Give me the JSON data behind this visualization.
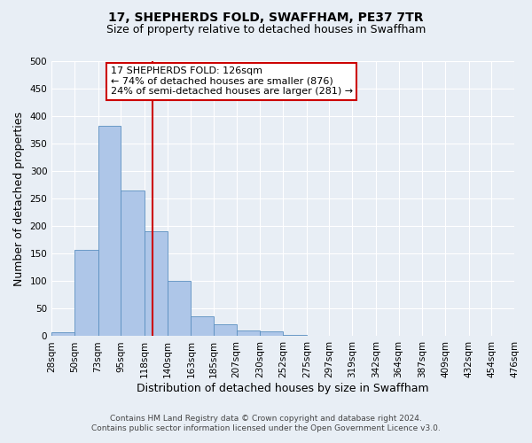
{
  "title": "17, SHEPHERDS FOLD, SWAFFHAM, PE37 7TR",
  "subtitle": "Size of property relative to detached houses in Swaffham",
  "xlabel": "Distribution of detached houses by size in Swaffham",
  "ylabel": "Number of detached properties",
  "bin_edges": [
    28,
    50,
    73,
    95,
    118,
    140,
    163,
    185,
    207,
    230,
    252,
    275,
    297,
    319,
    342,
    364,
    387,
    409,
    432,
    454,
    476
  ],
  "bar_heights": [
    7,
    157,
    383,
    265,
    190,
    101,
    36,
    21,
    11,
    8,
    2,
    1,
    1,
    0,
    0,
    1,
    0,
    0,
    0,
    0
  ],
  "bar_color": "#aec6e8",
  "bar_edgecolor": "#5a8fc0",
  "reference_line_x": 126,
  "reference_line_color": "#cc0000",
  "annotation_title": "17 SHEPHERDS FOLD: 126sqm",
  "annotation_line1": "← 74% of detached houses are smaller (876)",
  "annotation_line2": "24% of semi-detached houses are larger (281) →",
  "annotation_box_edgecolor": "#cc0000",
  "annotation_box_facecolor": "#ffffff",
  "ylim": [
    0,
    500
  ],
  "yticks": [
    0,
    50,
    100,
    150,
    200,
    250,
    300,
    350,
    400,
    450,
    500
  ],
  "footer_line1": "Contains HM Land Registry data © Crown copyright and database right 2024.",
  "footer_line2": "Contains public sector information licensed under the Open Government Licence v3.0.",
  "background_color": "#e8eef5",
  "plot_background_color": "#e8eef5",
  "title_fontsize": 10,
  "subtitle_fontsize": 9,
  "axis_label_fontsize": 9,
  "tick_fontsize": 7.5,
  "annotation_fontsize": 8,
  "footer_fontsize": 6.5
}
